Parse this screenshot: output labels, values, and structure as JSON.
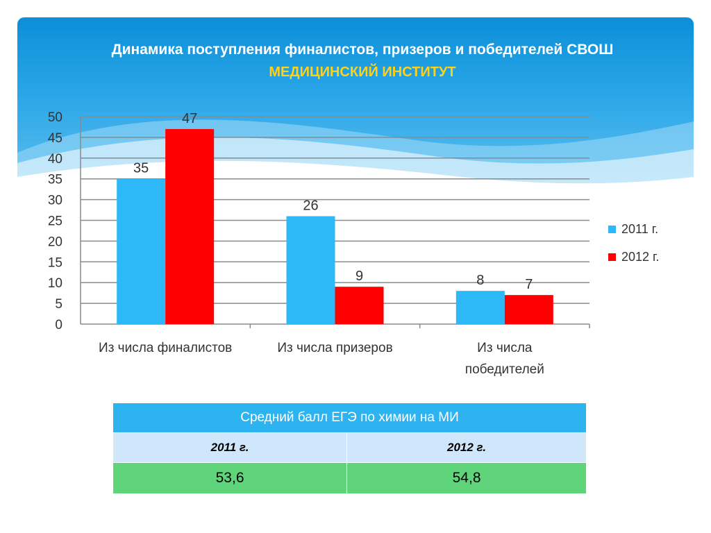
{
  "title": "Динамика поступления финалистов, призеров и победителей СВОШ",
  "subtitle": "МЕДИЦИНСКИЙ ИНСТИТУТ",
  "colors": {
    "series_2011": "#2db8f7",
    "series_2012": "#ff0000",
    "table_head": "#2cb3f0",
    "table_years": "#cfe6fb",
    "table_values": "#5fd47a"
  },
  "chart_data": {
    "type": "bar",
    "categories": [
      "Из числа финалистов",
      "Из числа призеров",
      "Из числа победителей"
    ],
    "category_lines": [
      [
        "Из числа финалистов"
      ],
      [
        "Из числа призеров"
      ],
      [
        "Из числа",
        "победителей"
      ]
    ],
    "series": [
      {
        "name": "2011 г.",
        "values": [
          35,
          26,
          8
        ]
      },
      {
        "name": "2012 г.",
        "values": [
          47,
          9,
          7
        ]
      }
    ],
    "ylim": [
      0,
      50
    ],
    "yticks": [
      "0",
      "5",
      "10",
      "15",
      "20",
      "25",
      "30",
      "35",
      "40",
      "45",
      "50"
    ],
    "grid": true,
    "legend_position": "right"
  },
  "table": {
    "header": "Средний балл ЕГЭ по химии на МИ",
    "years": [
      "2011 г.",
      "2012 г."
    ],
    "values": [
      "53,6",
      "54,8"
    ]
  }
}
